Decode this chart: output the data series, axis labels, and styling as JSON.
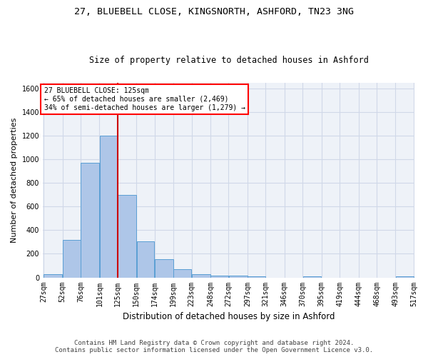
{
  "title1": "27, BLUEBELL CLOSE, KINGSNORTH, ASHFORD, TN23 3NG",
  "title2": "Size of property relative to detached houses in Ashford",
  "xlabel": "Distribution of detached houses by size in Ashford",
  "ylabel": "Number of detached properties",
  "footer1": "Contains HM Land Registry data © Crown copyright and database right 2024.",
  "footer2": "Contains public sector information licensed under the Open Government Licence v3.0.",
  "annotation_title": "27 BLUEBELL CLOSE: 125sqm",
  "annotation_line1": "← 65% of detached houses are smaller (2,469)",
  "annotation_line2": "34% of semi-detached houses are larger (1,279) →",
  "property_size": 125,
  "bin_edges": [
    27,
    52,
    76,
    101,
    125,
    150,
    174,
    199,
    223,
    248,
    272,
    297,
    321,
    346,
    370,
    395,
    419,
    444,
    468,
    493,
    517
  ],
  "bar_heights": [
    30,
    320,
    970,
    1200,
    700,
    305,
    155,
    70,
    25,
    15,
    15,
    12,
    0,
    0,
    10,
    0,
    0,
    0,
    0,
    12
  ],
  "bar_color": "#aec6e8",
  "bar_edgecolor": "#5a9fd4",
  "vline_color": "#cc0000",
  "grid_color": "#d0d8e8",
  "bg_color": "#eef2f8",
  "ylim": [
    0,
    1650
  ],
  "yticks": [
    0,
    200,
    400,
    600,
    800,
    1000,
    1200,
    1400,
    1600
  ],
  "title1_fontsize": 9.5,
  "title2_fontsize": 8.5,
  "ylabel_fontsize": 8,
  "xlabel_fontsize": 8.5,
  "tick_fontsize": 7,
  "footer_fontsize": 6.5
}
